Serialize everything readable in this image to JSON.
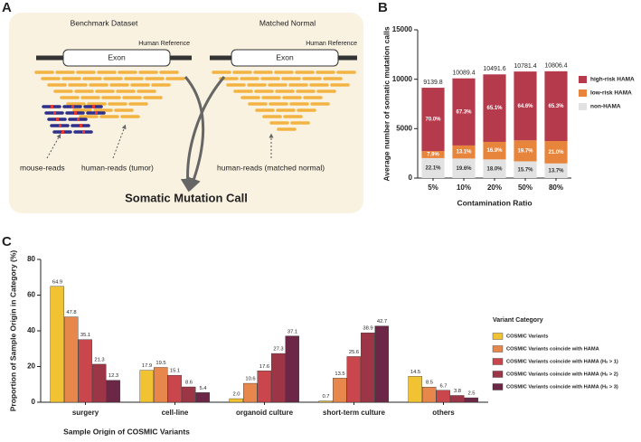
{
  "diagram": {
    "panel_label": "A",
    "left_title": "Benchmark Dataset",
    "right_title": "Matched Normal",
    "left_reference": "Human Reference",
    "right_reference": "Human Reference",
    "left_exon": "Exon",
    "right_exon": "Exon",
    "mouse_reads": "mouse-reads",
    "tumor_reads": "human-reads (tumor)",
    "normal_reads": "human-reads (matched normal)",
    "result": "Somatic Mutation Call"
  },
  "chart_data": [
    {
      "type": "stacked_bar",
      "panel_label": "B",
      "y_label": "Average number of somatic mutation calls",
      "x_label": "Contamination Ratio",
      "categories": [
        "5%",
        "10%",
        "20%",
        "50%",
        "80%"
      ],
      "totals": [
        9139.8,
        10089.4,
        10491.6,
        10781.4,
        10806.4
      ],
      "series": [
        {
          "name": "non-HAMA",
          "color": "#e2e2e2",
          "values": [
            2019.9,
            1977.5,
            1888.5,
            1692.7,
            1480.5
          ],
          "value_labels": [
            "22.1%",
            "19.6%",
            "18.0%",
            "15.7%",
            "13.7%"
          ]
        },
        {
          "name": "low-risk HAMA",
          "color": "#e8853d",
          "values": [
            722.0,
            1321.7,
            1773.1,
            2123.9,
            2269.3
          ],
          "value_labels": [
            "7.9%",
            "13.1%",
            "16.9%",
            "19.7%",
            "21.0%"
          ]
        },
        {
          "name": "high-risk HAMA",
          "color": "#b53a4c",
          "values": [
            6397.9,
            6790.2,
            6830.0,
            6964.8,
            7056.6
          ],
          "value_labels": [
            "70.0%",
            "67.3%",
            "65.1%",
            "64.6%",
            "65.3%"
          ]
        }
      ],
      "ylim": [
        0,
        15000
      ],
      "yticks": [
        0,
        5000,
        10000,
        15000
      ],
      "legend": "right"
    },
    {
      "type": "grouped_bar",
      "panel_label": "C",
      "y_label": "Proportion of Sample Origin in Category (%)",
      "x_label": "Sample Origin of COSMIC Variants",
      "legend_title": "Variant Category",
      "categories": [
        "surgery",
        "cell-line",
        "organoid culture",
        "short-term culture",
        "others"
      ],
      "series": [
        {
          "name": "COSMIC Variants",
          "color": "#f1c232",
          "values": [
            64.9,
            17.9,
            2.0,
            0.7,
            14.5
          ],
          "value_labels": [
            "64.9",
            "17.9",
            "2.0",
            "0.7",
            "14.5"
          ]
        },
        {
          "name": "COSMIC Variants coincide with HAMA",
          "color": "#e8874c",
          "values": [
            47.8,
            19.5,
            10.6,
            13.5,
            8.5
          ],
          "value_labels": [
            "47.8",
            "19.5",
            "10.6",
            "13.5",
            "8.5"
          ]
        },
        {
          "name": "COSMIC Variants coincide with HAMA (Hₛ > 1)",
          "color": "#c9464c",
          "values": [
            35.1,
            15.1,
            17.6,
            25.6,
            6.7
          ],
          "value_labels": [
            "35.1",
            "15.1",
            "17.6",
            "25.6",
            "6.7"
          ]
        },
        {
          "name": "COSMIC Variants coincide with HAMA (Hₛ > 2)",
          "color": "#9c3646",
          "values": [
            21.3,
            8.6,
            27.3,
            38.9,
            3.8
          ],
          "value_labels": [
            "21.3",
            "8.6",
            "27.3",
            "38.9",
            "3.8"
          ]
        },
        {
          "name": "COSMIC Variants coincide with HAMA (Hₛ > 3)",
          "color": "#6c2746",
          "values": [
            12.3,
            5.4,
            37.1,
            42.7,
            2.5
          ],
          "value_labels": [
            "12.3",
            "5.4",
            "37.1",
            "42.7",
            "2.5"
          ]
        }
      ],
      "ylim": [
        0,
        80
      ],
      "yticks": [
        0,
        20,
        40,
        60,
        80
      ],
      "legend": "right"
    }
  ]
}
